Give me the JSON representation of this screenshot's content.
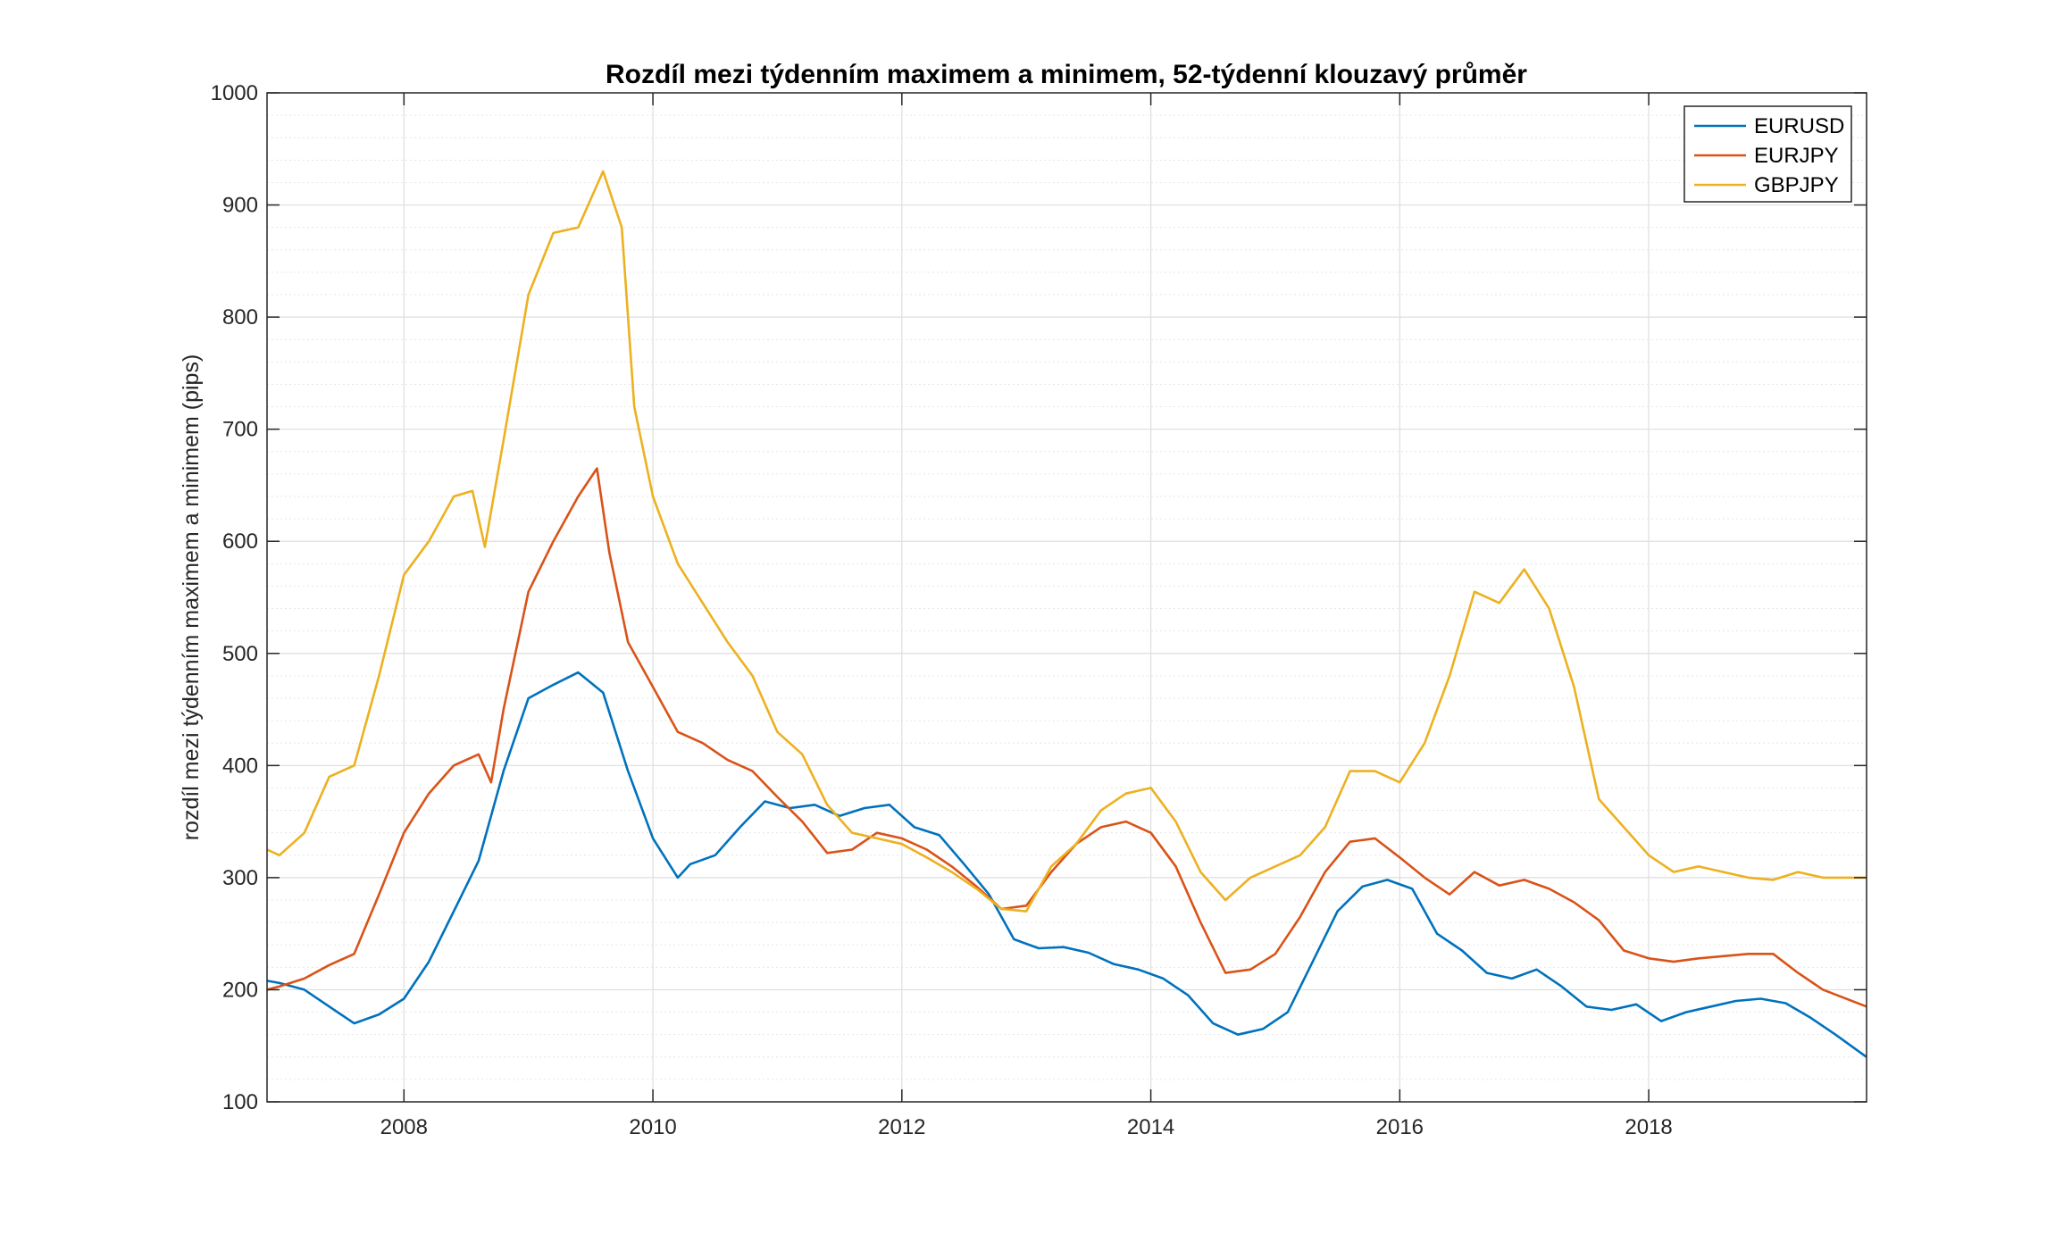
{
  "chart_data": {
    "type": "line",
    "title": "Rozdíl mezi týdenním maximem a minimem, 52-týdenní klouzavý průměr",
    "xlabel": "",
    "ylabel": "rozdíl mezi týdenním maximem a minimem (pips)",
    "xlim": [
      2006.9,
      2019.75
    ],
    "ylim": [
      100,
      1000
    ],
    "xticks": [
      2008,
      2010,
      2012,
      2014,
      2016,
      2018
    ],
    "yticks": [
      100,
      200,
      300,
      400,
      500,
      600,
      700,
      800,
      900,
      1000
    ],
    "grid": true,
    "minor_grid": true,
    "legend_position": "top-right",
    "series": [
      {
        "name": "EURUSD",
        "color": "#0072BD",
        "x": [
          2006.9,
          2007.0,
          2007.2,
          2007.4,
          2007.6,
          2007.8,
          2008.0,
          2008.2,
          2008.4,
          2008.6,
          2008.8,
          2009.0,
          2009.2,
          2009.4,
          2009.6,
          2009.8,
          2010.0,
          2010.2,
          2010.3,
          2010.5,
          2010.7,
          2010.9,
          2011.1,
          2011.3,
          2011.5,
          2011.7,
          2011.9,
          2012.1,
          2012.3,
          2012.5,
          2012.7,
          2012.9,
          2013.1,
          2013.3,
          2013.5,
          2013.7,
          2013.9,
          2014.1,
          2014.3,
          2014.5,
          2014.7,
          2014.9,
          2015.1,
          2015.3,
          2015.5,
          2015.7,
          2015.9,
          2016.1,
          2016.3,
          2016.5,
          2016.7,
          2016.9,
          2017.1,
          2017.3,
          2017.5,
          2017.7,
          2017.9,
          2018.1,
          2018.3,
          2018.5,
          2018.7,
          2018.9,
          2019.1,
          2019.3,
          2019.5,
          2019.75
        ],
        "values": [
          208,
          206,
          200,
          185,
          170,
          178,
          192,
          225,
          270,
          315,
          395,
          460,
          472,
          483,
          465,
          395,
          335,
          300,
          312,
          320,
          345,
          368,
          362,
          365,
          355,
          362,
          365,
          345,
          338,
          312,
          285,
          245,
          237,
          238,
          233,
          223,
          218,
          210,
          195,
          170,
          160,
          165,
          180,
          225,
          270,
          292,
          298,
          290,
          250,
          235,
          215,
          210,
          218,
          203,
          185,
          182,
          187,
          172,
          180,
          185,
          190,
          192,
          188,
          175,
          160,
          140
        ]
      },
      {
        "name": "EURJPY",
        "color": "#D95319",
        "x": [
          2006.9,
          2007.0,
          2007.2,
          2007.4,
          2007.6,
          2007.8,
          2008.0,
          2008.2,
          2008.4,
          2008.6,
          2008.7,
          2008.8,
          2009.0,
          2009.2,
          2009.4,
          2009.55,
          2009.65,
          2009.8,
          2010.0,
          2010.2,
          2010.4,
          2010.6,
          2010.8,
          2011.0,
          2011.2,
          2011.4,
          2011.6,
          2011.8,
          2012.0,
          2012.2,
          2012.4,
          2012.6,
          2012.8,
          2013.0,
          2013.2,
          2013.4,
          2013.6,
          2013.8,
          2014.0,
          2014.2,
          2014.4,
          2014.6,
          2014.8,
          2015.0,
          2015.2,
          2015.4,
          2015.6,
          2015.8,
          2016.0,
          2016.2,
          2016.4,
          2016.6,
          2016.8,
          2017.0,
          2017.2,
          2017.4,
          2017.6,
          2017.8,
          2018.0,
          2018.2,
          2018.4,
          2018.6,
          2018.8,
          2019.0,
          2019.2,
          2019.4,
          2019.75
        ],
        "values": [
          200,
          203,
          210,
          222,
          232,
          285,
          340,
          375,
          400,
          410,
          385,
          450,
          555,
          600,
          640,
          665,
          590,
          510,
          470,
          430,
          420,
          405,
          395,
          372,
          350,
          322,
          325,
          340,
          335,
          325,
          310,
          292,
          272,
          275,
          305,
          330,
          345,
          350,
          340,
          310,
          260,
          215,
          218,
          232,
          265,
          305,
          332,
          335,
          318,
          300,
          285,
          305,
          293,
          298,
          290,
          278,
          262,
          235,
          228,
          225,
          228,
          230,
          232,
          232,
          215,
          200,
          185
        ]
      },
      {
        "name": "GBPJPY",
        "color": "#EDB120",
        "x": [
          2006.9,
          2007.0,
          2007.2,
          2007.4,
          2007.6,
          2007.8,
          2008.0,
          2008.2,
          2008.4,
          2008.55,
          2008.65,
          2008.8,
          2009.0,
          2009.2,
          2009.4,
          2009.6,
          2009.75,
          2009.85,
          2010.0,
          2010.2,
          2010.4,
          2010.6,
          2010.8,
          2011.0,
          2011.2,
          2011.4,
          2011.6,
          2011.8,
          2012.0,
          2012.2,
          2012.4,
          2012.6,
          2012.8,
          2013.0,
          2013.2,
          2013.4,
          2013.6,
          2013.8,
          2014.0,
          2014.2,
          2014.4,
          2014.6,
          2014.8,
          2015.0,
          2015.2,
          2015.4,
          2015.6,
          2015.8,
          2016.0,
          2016.2,
          2016.4,
          2016.6,
          2016.8,
          2017.0,
          2017.2,
          2017.4,
          2017.6,
          2017.8,
          2018.0,
          2018.2,
          2018.4,
          2018.6,
          2018.8,
          2019.0,
          2019.2,
          2019.4,
          2019.75
        ],
        "values": [
          325,
          320,
          340,
          390,
          400,
          480,
          570,
          600,
          640,
          645,
          595,
          690,
          820,
          875,
          880,
          930,
          880,
          720,
          640,
          580,
          545,
          510,
          480,
          430,
          410,
          365,
          340,
          335,
          330,
          318,
          305,
          290,
          272,
          270,
          310,
          330,
          360,
          375,
          380,
          350,
          305,
          280,
          300,
          310,
          320,
          345,
          395,
          395,
          385,
          420,
          480,
          555,
          545,
          575,
          540,
          470,
          370,
          345,
          320,
          305,
          310,
          305,
          300,
          298,
          305,
          300,
          300
        ]
      }
    ]
  }
}
